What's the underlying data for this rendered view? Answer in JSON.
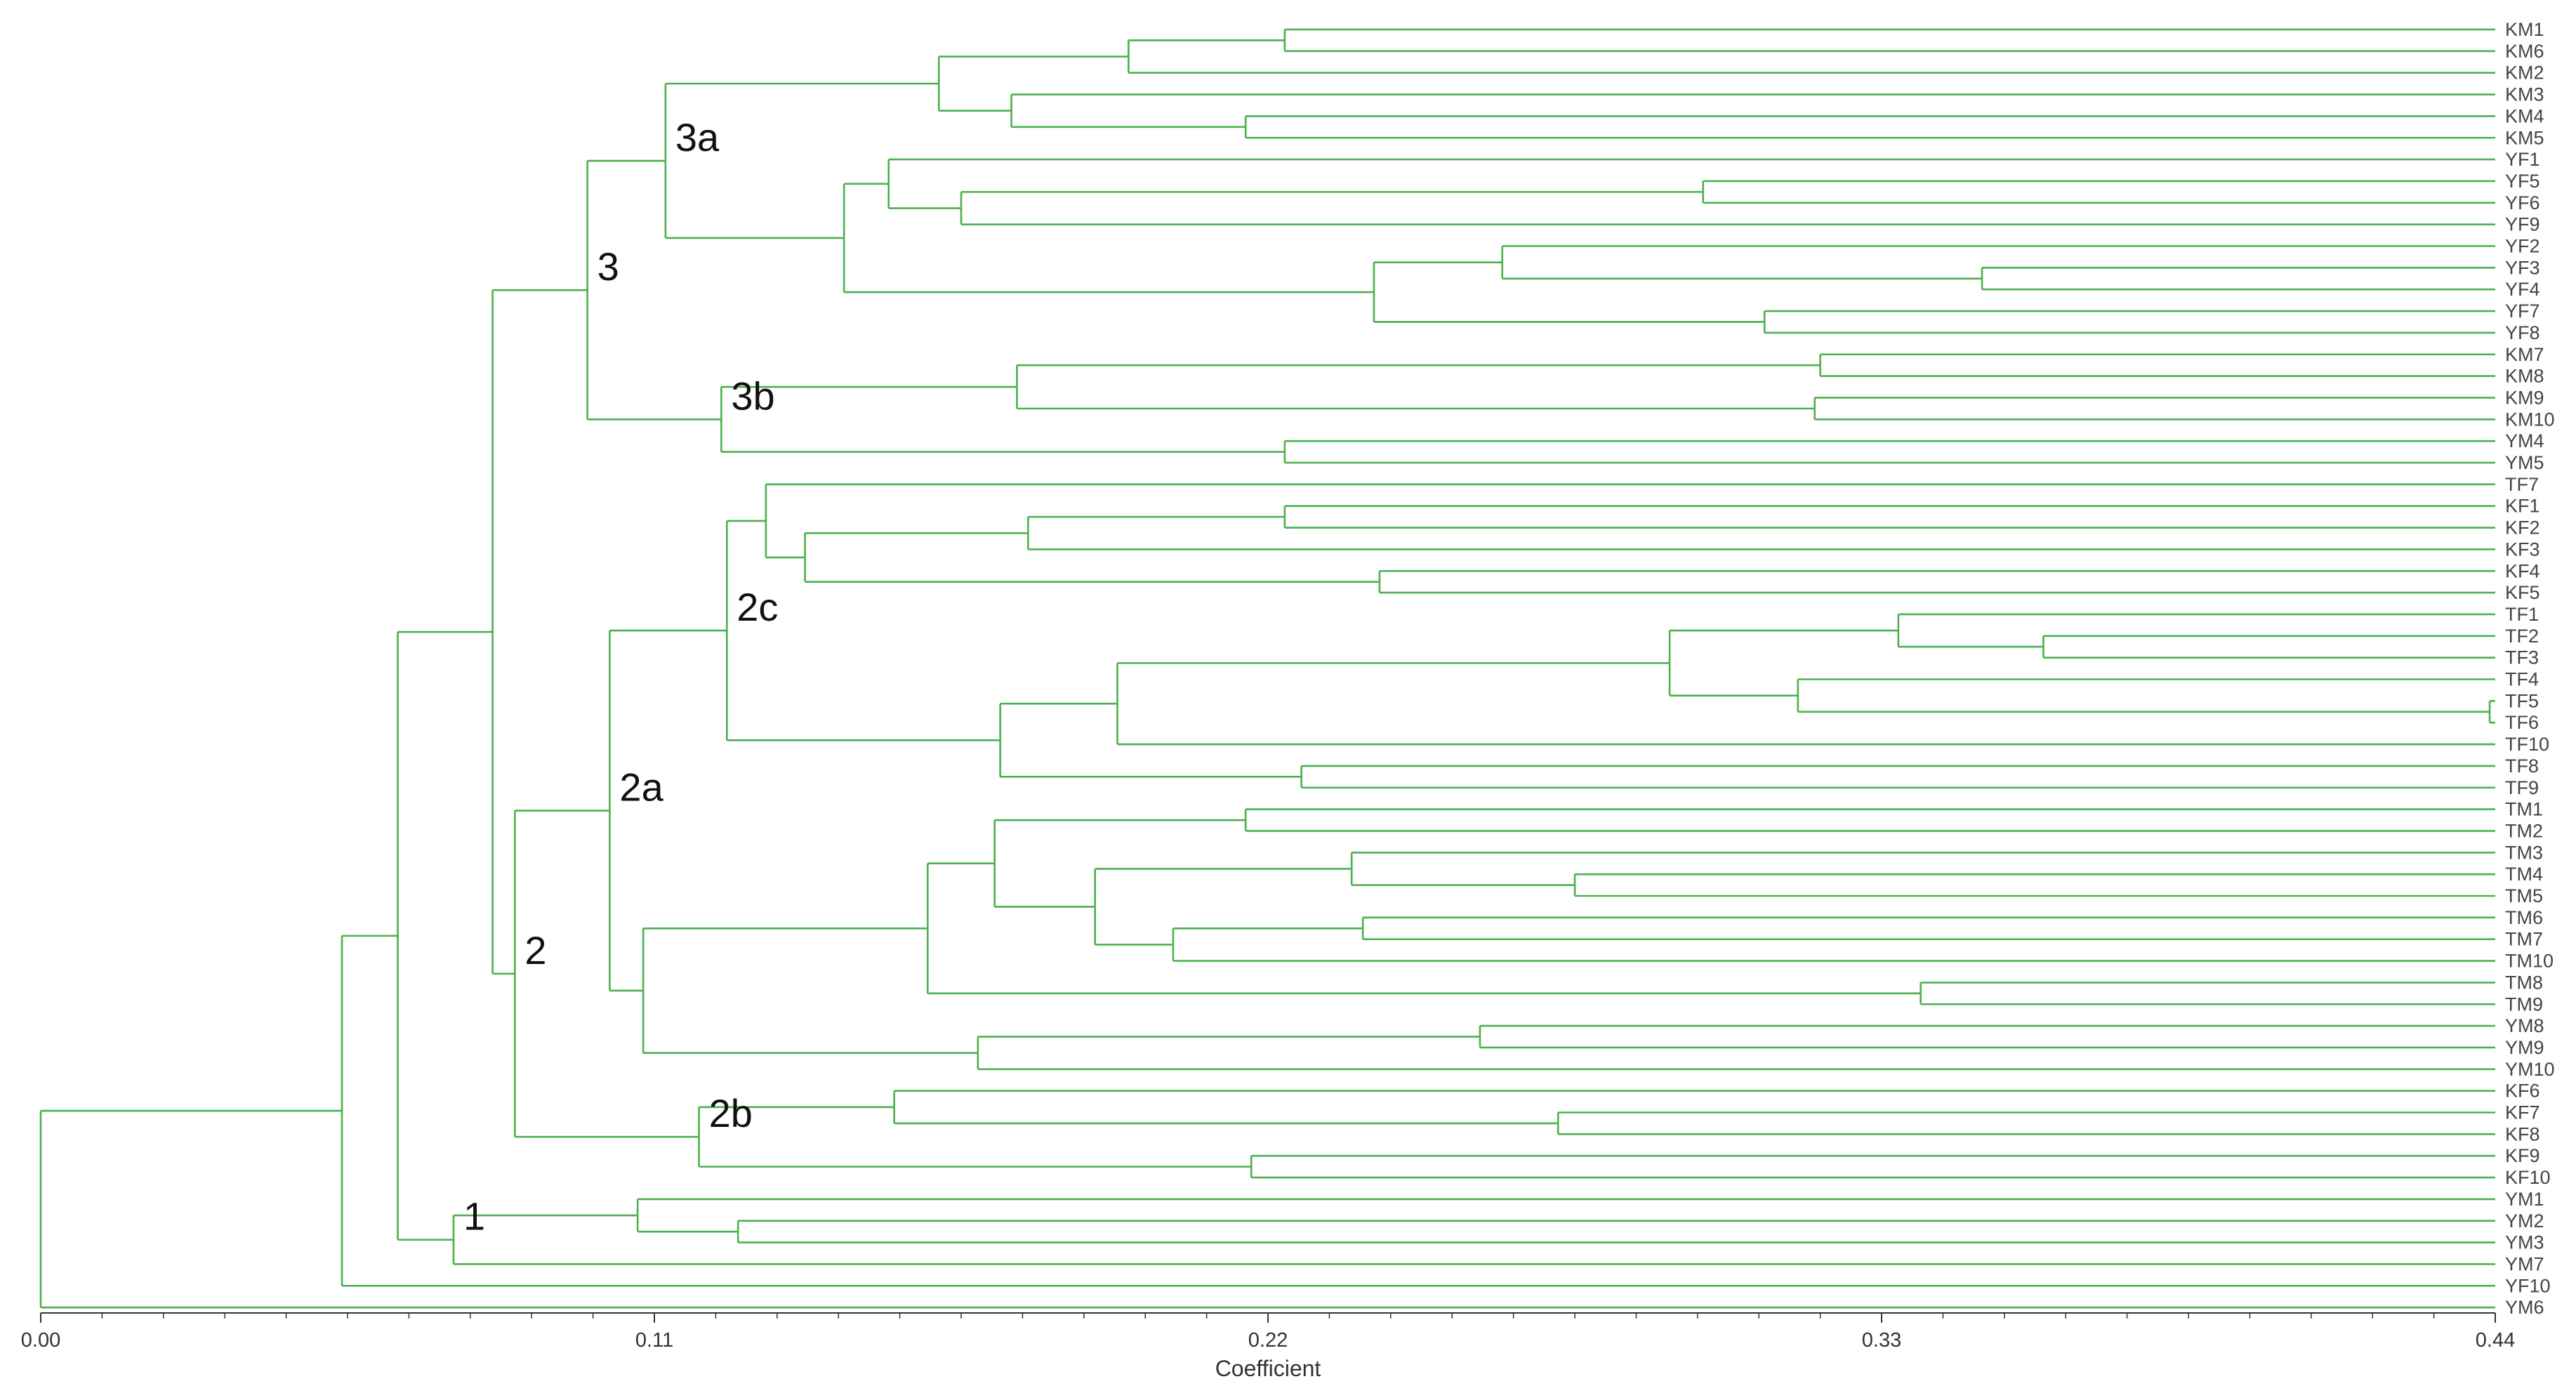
{
  "chart_data": {
    "type": "dendrogram",
    "orientation": "horizontal",
    "xlabel": "Coefficient",
    "xlim": [
      0.0,
      0.44
    ],
    "xticks": [
      {
        "value": 0.0,
        "label": "0.00"
      },
      {
        "value": 0.11,
        "label": "0.11"
      },
      {
        "value": 0.22,
        "label": "0.22"
      },
      {
        "value": 0.33,
        "label": "0.33"
      },
      {
        "value": 0.44,
        "label": "0.44"
      }
    ],
    "minor_tick_step": 0.011,
    "leaves": [
      "KM1",
      "KM6",
      "KM2",
      "KM3",
      "KM4",
      "KM5",
      "YF1",
      "YF5",
      "YF6",
      "YF9",
      "YF2",
      "YF3",
      "YF4",
      "YF7",
      "YF8",
      "KM7",
      "KM8",
      "KM9",
      "KM10",
      "YM4",
      "YM5",
      "TF7",
      "KF1",
      "KF2",
      "KF3",
      "KF4",
      "KF5",
      "TF1",
      "TF2",
      "TF3",
      "TF4",
      "TF5",
      "TF6",
      "TF10",
      "TF8",
      "TF9",
      "TM1",
      "TM2",
      "TM3",
      "TM4",
      "TM5",
      "TM6",
      "TM7",
      "TM10",
      "TM8",
      "TM9",
      "YM8",
      "YM9",
      "YM10",
      "KF6",
      "KF7",
      "KF8",
      "KF9",
      "KF10",
      "YM1",
      "YM2",
      "YM3",
      "YM7",
      "YF10",
      "YM6"
    ],
    "merges": [
      {
        "id": "n_km1_6",
        "children": [
          "KM1",
          "KM6"
        ],
        "height": 0.223
      },
      {
        "id": "n_km1_2",
        "children": [
          "n_km1_6",
          "KM2"
        ],
        "height": 0.195
      },
      {
        "id": "n_km4_5",
        "children": [
          "KM4",
          "KM5"
        ],
        "height": 0.216
      },
      {
        "id": "n_km3_5",
        "children": [
          "KM3",
          "n_km4_5"
        ],
        "height": 0.174
      },
      {
        "id": "n_km_a",
        "children": [
          "n_km1_2",
          "n_km3_5"
        ],
        "height": 0.161
      },
      {
        "id": "n_yf5_6",
        "children": [
          "YF5",
          "YF6"
        ],
        "height": 0.298
      },
      {
        "id": "n_yf5_9",
        "children": [
          "n_yf5_6",
          "YF9"
        ],
        "height": 0.165
      },
      {
        "id": "n_yf1_9",
        "children": [
          "YF1",
          "n_yf5_9"
        ],
        "height": 0.152
      },
      {
        "id": "n_yf3_4",
        "children": [
          "YF3",
          "YF4"
        ],
        "height": 0.348
      },
      {
        "id": "n_yf2_4",
        "children": [
          "YF2",
          "n_yf3_4"
        ],
        "height": 0.262
      },
      {
        "id": "n_yf7_8",
        "children": [
          "YF7",
          "YF8"
        ],
        "height": 0.309
      },
      {
        "id": "n_yf2_8",
        "children": [
          "n_yf2_4",
          "n_yf7_8"
        ],
        "height": 0.239
      },
      {
        "id": "n_yf",
        "children": [
          "n_yf1_9",
          "n_yf2_8"
        ],
        "height": 0.144
      },
      {
        "id": "n_3a",
        "children": [
          "n_km_a",
          "n_yf"
        ],
        "height": 0.112
      },
      {
        "id": "n_km7_8",
        "children": [
          "KM7",
          "KM8"
        ],
        "height": 0.319
      },
      {
        "id": "n_km9_10",
        "children": [
          "KM9",
          "KM10"
        ],
        "height": 0.318
      },
      {
        "id": "n_km7_10",
        "children": [
          "n_km7_8",
          "n_km9_10"
        ],
        "height": 0.175
      },
      {
        "id": "n_ym4_5",
        "children": [
          "YM4",
          "YM5"
        ],
        "height": 0.223
      },
      {
        "id": "n_3b",
        "children": [
          "n_km7_10",
          "n_ym4_5"
        ],
        "height": 0.122
      },
      {
        "id": "n_3",
        "children": [
          "n_3a",
          "n_3b"
        ],
        "height": 0.098
      },
      {
        "id": "n_kf1_2",
        "children": [
          "KF1",
          "KF2"
        ],
        "height": 0.223
      },
      {
        "id": "n_kf1_3",
        "children": [
          "n_kf1_2",
          "KF3"
        ],
        "height": 0.177
      },
      {
        "id": "n_kf4_5",
        "children": [
          "KF4",
          "KF5"
        ],
        "height": 0.24
      },
      {
        "id": "n_kf1_5",
        "children": [
          "n_kf1_3",
          "n_kf4_5"
        ],
        "height": 0.137
      },
      {
        "id": "n_tf7_kf",
        "children": [
          "TF7",
          "n_kf1_5"
        ],
        "height": 0.13
      },
      {
        "id": "n_tf2_3",
        "children": [
          "TF2",
          "TF3"
        ],
        "height": 0.359
      },
      {
        "id": "n_tf1_3",
        "children": [
          "TF1",
          "n_tf2_3"
        ],
        "height": 0.333
      },
      {
        "id": "n_tf5_6",
        "children": [
          "TF5",
          "TF6"
        ],
        "height": 0.439
      },
      {
        "id": "n_tf4_6",
        "children": [
          "TF4",
          "n_tf5_6"
        ],
        "height": 0.315
      },
      {
        "id": "n_tf1_6",
        "children": [
          "n_tf1_3",
          "n_tf4_6"
        ],
        "height": 0.292
      },
      {
        "id": "n_tf1_10",
        "children": [
          "n_tf1_6",
          "TF10"
        ],
        "height": 0.193
      },
      {
        "id": "n_tf8_9",
        "children": [
          "TF8",
          "TF9"
        ],
        "height": 0.226
      },
      {
        "id": "n_tf",
        "children": [
          "n_tf1_10",
          "n_tf8_9"
        ],
        "height": 0.172
      },
      {
        "id": "n_2c",
        "children": [
          "n_tf7_kf",
          "n_tf"
        ],
        "height": 0.123
      },
      {
        "id": "n_tm1_2",
        "children": [
          "TM1",
          "TM2"
        ],
        "height": 0.216
      },
      {
        "id": "n_tm4_5",
        "children": [
          "TM4",
          "TM5"
        ],
        "height": 0.275
      },
      {
        "id": "n_tm3_5",
        "children": [
          "TM3",
          "n_tm4_5"
        ],
        "height": 0.235
      },
      {
        "id": "n_tm6_7",
        "children": [
          "TM6",
          "TM7"
        ],
        "height": 0.237
      },
      {
        "id": "n_tm6_10",
        "children": [
          "n_tm6_7",
          "TM10"
        ],
        "height": 0.203
      },
      {
        "id": "n_tm3_10",
        "children": [
          "n_tm3_5",
          "n_tm6_10"
        ],
        "height": 0.189
      },
      {
        "id": "n_tm1_10",
        "children": [
          "n_tm1_2",
          "n_tm3_10"
        ],
        "height": 0.171
      },
      {
        "id": "n_tm8_9",
        "children": [
          "TM8",
          "TM9"
        ],
        "height": 0.337
      },
      {
        "id": "n_tm",
        "children": [
          "n_tm1_10",
          "n_tm8_9"
        ],
        "height": 0.159
      },
      {
        "id": "n_ym8_9",
        "children": [
          "YM8",
          "YM9"
        ],
        "height": 0.258
      },
      {
        "id": "n_ym8_10",
        "children": [
          "n_ym8_9",
          "YM10"
        ],
        "height": 0.168
      },
      {
        "id": "n_tm_ym",
        "children": [
          "n_tm",
          "n_ym8_10"
        ],
        "height": 0.108
      },
      {
        "id": "n_2a",
        "children": [
          "n_2c",
          "n_tm_ym"
        ],
        "height": 0.102
      },
      {
        "id": "n_kf7_8",
        "children": [
          "KF7",
          "KF8"
        ],
        "height": 0.272
      },
      {
        "id": "n_kf6_8",
        "children": [
          "KF6",
          "n_kf7_8"
        ],
        "height": 0.153
      },
      {
        "id": "n_kf9_10",
        "children": [
          "KF9",
          "KF10"
        ],
        "height": 0.217
      },
      {
        "id": "n_2b",
        "children": [
          "n_kf6_8",
          "n_kf9_10"
        ],
        "height": 0.118
      },
      {
        "id": "n_2",
        "children": [
          "n_2a",
          "n_2b"
        ],
        "height": 0.085
      },
      {
        "id": "n_23",
        "children": [
          "n_3",
          "n_2"
        ],
        "height": 0.081
      },
      {
        "id": "n_ym2_3",
        "children": [
          "YM2",
          "YM3"
        ],
        "height": 0.125
      },
      {
        "id": "n_ym1_3",
        "children": [
          "YM1",
          "n_ym2_3"
        ],
        "height": 0.107
      },
      {
        "id": "n_1",
        "children": [
          "n_ym1_3",
          "YM7"
        ],
        "height": 0.074
      },
      {
        "id": "n_123",
        "children": [
          "n_23",
          "n_1"
        ],
        "height": 0.064
      },
      {
        "id": "n_yf10",
        "children": [
          "n_123",
          "YF10"
        ],
        "height": 0.054
      },
      {
        "id": "root",
        "children": [
          "n_yf10",
          "YM6"
        ],
        "height": 0.0
      }
    ],
    "cluster_annotations": [
      {
        "label": "3a",
        "node": "n_3a"
      },
      {
        "label": "3",
        "node": "n_3"
      },
      {
        "label": "3b",
        "node": "n_3b"
      },
      {
        "label": "2c",
        "node": "n_2c"
      },
      {
        "label": "2a",
        "node": "n_2a"
      },
      {
        "label": "2",
        "node": "n_2"
      },
      {
        "label": "2b",
        "node": "n_2b"
      },
      {
        "label": "1",
        "node": "n_1"
      }
    ]
  }
}
